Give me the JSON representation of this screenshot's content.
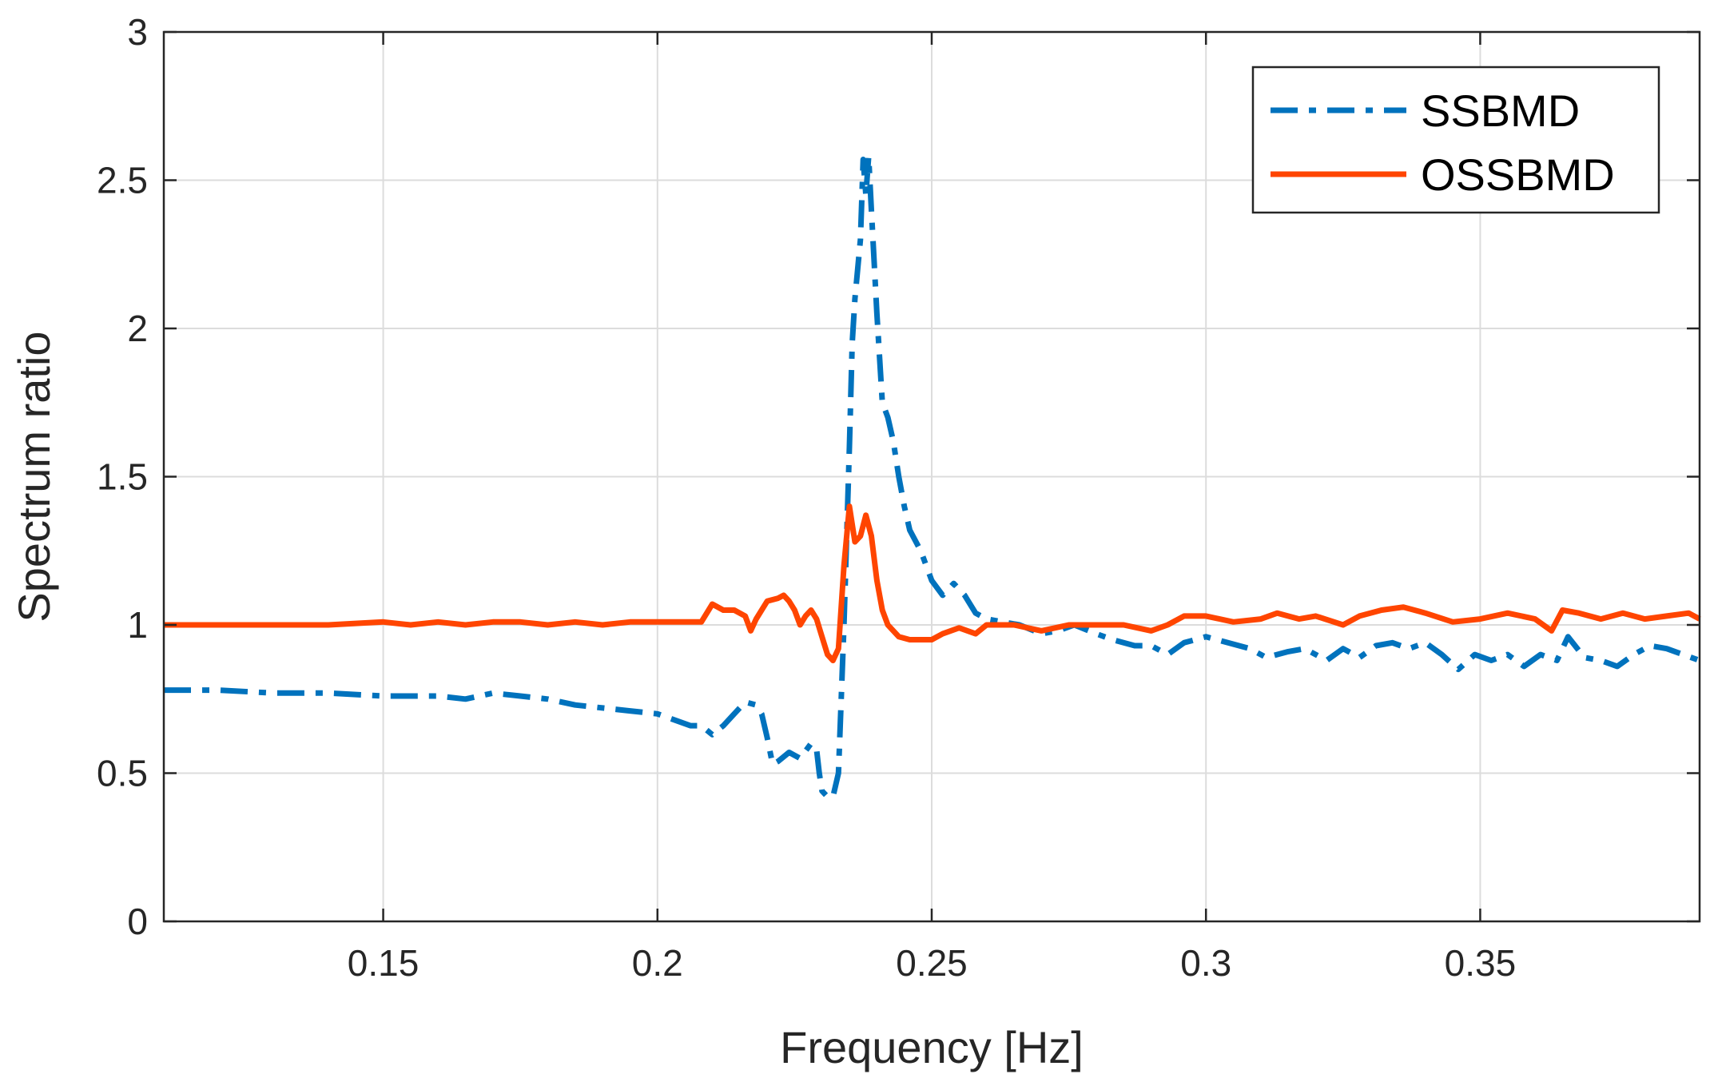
{
  "chart_data": {
    "type": "line",
    "title": "",
    "xlabel": "Frequency [Hz]",
    "ylabel": "Spectrum ratio",
    "xlim": [
      0.11,
      0.39
    ],
    "ylim": [
      0,
      3
    ],
    "grid": true,
    "legend_position": "top-right",
    "x_ticks": [
      0.15,
      0.2,
      0.25,
      0.3,
      0.35
    ],
    "x_tick_labels": [
      "0.15",
      "0.2",
      "0.25",
      "0.3",
      "0.35"
    ],
    "y_ticks": [
      0,
      0.5,
      1,
      1.5,
      2,
      2.5,
      3
    ],
    "y_tick_labels": [
      "0",
      "0.5",
      "1",
      "1.5",
      "2",
      "2.5",
      "3"
    ],
    "series": [
      {
        "name": "SSBMD",
        "color": "#0072BD",
        "style": "dashdot",
        "points": [
          [
            0.11,
            0.78
          ],
          [
            0.12,
            0.78
          ],
          [
            0.13,
            0.77
          ],
          [
            0.14,
            0.77
          ],
          [
            0.15,
            0.76
          ],
          [
            0.16,
            0.76
          ],
          [
            0.165,
            0.75
          ],
          [
            0.17,
            0.77
          ],
          [
            0.175,
            0.76
          ],
          [
            0.18,
            0.75
          ],
          [
            0.185,
            0.73
          ],
          [
            0.19,
            0.72
          ],
          [
            0.195,
            0.71
          ],
          [
            0.2,
            0.7
          ],
          [
            0.203,
            0.68
          ],
          [
            0.206,
            0.66
          ],
          [
            0.208,
            0.66
          ],
          [
            0.21,
            0.63
          ],
          [
            0.212,
            0.66
          ],
          [
            0.214,
            0.7
          ],
          [
            0.216,
            0.74
          ],
          [
            0.218,
            0.73
          ],
          [
            0.219,
            0.7
          ],
          [
            0.22,
            0.62
          ],
          [
            0.221,
            0.53
          ],
          [
            0.222,
            0.54
          ],
          [
            0.224,
            0.57
          ],
          [
            0.226,
            0.55
          ],
          [
            0.228,
            0.6
          ],
          [
            0.229,
            0.58
          ],
          [
            0.2295,
            0.5
          ],
          [
            0.23,
            0.44
          ],
          [
            0.231,
            0.42
          ],
          [
            0.232,
            0.42
          ],
          [
            0.233,
            0.5
          ],
          [
            0.234,
            1.0
          ],
          [
            0.235,
            1.6
          ],
          [
            0.2355,
            1.95
          ],
          [
            0.236,
            2.1
          ],
          [
            0.237,
            2.3
          ],
          [
            0.2375,
            2.57
          ],
          [
            0.238,
            2.45
          ],
          [
            0.2385,
            2.58
          ],
          [
            0.239,
            2.4
          ],
          [
            0.24,
            2.05
          ],
          [
            0.241,
            1.75
          ],
          [
            0.242,
            1.7
          ],
          [
            0.243,
            1.62
          ],
          [
            0.244,
            1.5
          ],
          [
            0.245,
            1.4
          ],
          [
            0.246,
            1.32
          ],
          [
            0.248,
            1.25
          ],
          [
            0.25,
            1.15
          ],
          [
            0.252,
            1.1
          ],
          [
            0.254,
            1.14
          ],
          [
            0.256,
            1.1
          ],
          [
            0.258,
            1.04
          ],
          [
            0.26,
            1.02
          ],
          [
            0.263,
            1.01
          ],
          [
            0.266,
            1.0
          ],
          [
            0.27,
            0.97
          ],
          [
            0.273,
            0.98
          ],
          [
            0.276,
            1.0
          ],
          [
            0.28,
            0.97
          ],
          [
            0.283,
            0.95
          ],
          [
            0.287,
            0.93
          ],
          [
            0.29,
            0.93
          ],
          [
            0.293,
            0.9
          ],
          [
            0.296,
            0.94
          ],
          [
            0.3,
            0.96
          ],
          [
            0.304,
            0.94
          ],
          [
            0.308,
            0.92
          ],
          [
            0.311,
            0.89
          ],
          [
            0.315,
            0.91
          ],
          [
            0.318,
            0.92
          ],
          [
            0.322,
            0.88
          ],
          [
            0.325,
            0.92
          ],
          [
            0.328,
            0.89
          ],
          [
            0.331,
            0.93
          ],
          [
            0.334,
            0.94
          ],
          [
            0.337,
            0.92
          ],
          [
            0.34,
            0.94
          ],
          [
            0.343,
            0.9
          ],
          [
            0.346,
            0.85
          ],
          [
            0.349,
            0.9
          ],
          [
            0.352,
            0.88
          ],
          [
            0.355,
            0.9
          ],
          [
            0.358,
            0.86
          ],
          [
            0.361,
            0.9
          ],
          [
            0.364,
            0.88
          ],
          [
            0.366,
            0.96
          ],
          [
            0.369,
            0.89
          ],
          [
            0.372,
            0.88
          ],
          [
            0.375,
            0.86
          ],
          [
            0.378,
            0.9
          ],
          [
            0.381,
            0.93
          ],
          [
            0.384,
            0.92
          ],
          [
            0.387,
            0.9
          ],
          [
            0.39,
            0.88
          ]
        ]
      },
      {
        "name": "OSSBMD",
        "color": "#FF4500",
        "style": "solid",
        "points": [
          [
            0.11,
            1.0
          ],
          [
            0.12,
            1.0
          ],
          [
            0.13,
            1.0
          ],
          [
            0.14,
            1.0
          ],
          [
            0.15,
            1.01
          ],
          [
            0.155,
            1.0
          ],
          [
            0.16,
            1.01
          ],
          [
            0.165,
            1.0
          ],
          [
            0.17,
            1.01
          ],
          [
            0.175,
            1.01
          ],
          [
            0.18,
            1.0
          ],
          [
            0.185,
            1.01
          ],
          [
            0.19,
            1.0
          ],
          [
            0.195,
            1.01
          ],
          [
            0.2,
            1.01
          ],
          [
            0.205,
            1.01
          ],
          [
            0.208,
            1.01
          ],
          [
            0.21,
            1.07
          ],
          [
            0.212,
            1.05
          ],
          [
            0.214,
            1.05
          ],
          [
            0.216,
            1.03
          ],
          [
            0.217,
            0.98
          ],
          [
            0.218,
            1.02
          ],
          [
            0.22,
            1.08
          ],
          [
            0.222,
            1.09
          ],
          [
            0.223,
            1.1
          ],
          [
            0.224,
            1.08
          ],
          [
            0.225,
            1.05
          ],
          [
            0.226,
            1.0
          ],
          [
            0.227,
            1.03
          ],
          [
            0.228,
            1.05
          ],
          [
            0.229,
            1.02
          ],
          [
            0.23,
            0.96
          ],
          [
            0.231,
            0.9
          ],
          [
            0.232,
            0.88
          ],
          [
            0.233,
            0.92
          ],
          [
            0.234,
            1.2
          ],
          [
            0.235,
            1.4
          ],
          [
            0.236,
            1.28
          ],
          [
            0.237,
            1.3
          ],
          [
            0.238,
            1.37
          ],
          [
            0.239,
            1.3
          ],
          [
            0.24,
            1.15
          ],
          [
            0.241,
            1.05
          ],
          [
            0.242,
            1.0
          ],
          [
            0.244,
            0.96
          ],
          [
            0.246,
            0.95
          ],
          [
            0.248,
            0.95
          ],
          [
            0.25,
            0.95
          ],
          [
            0.252,
            0.97
          ],
          [
            0.255,
            0.99
          ],
          [
            0.258,
            0.97
          ],
          [
            0.26,
            1.0
          ],
          [
            0.265,
            1.0
          ],
          [
            0.27,
            0.98
          ],
          [
            0.275,
            1.0
          ],
          [
            0.28,
            1.0
          ],
          [
            0.285,
            1.0
          ],
          [
            0.29,
            0.98
          ],
          [
            0.293,
            1.0
          ],
          [
            0.296,
            1.03
          ],
          [
            0.3,
            1.03
          ],
          [
            0.305,
            1.01
          ],
          [
            0.31,
            1.02
          ],
          [
            0.313,
            1.04
          ],
          [
            0.317,
            1.02
          ],
          [
            0.32,
            1.03
          ],
          [
            0.325,
            1.0
          ],
          [
            0.328,
            1.03
          ],
          [
            0.332,
            1.05
          ],
          [
            0.336,
            1.06
          ],
          [
            0.34,
            1.04
          ],
          [
            0.345,
            1.01
          ],
          [
            0.35,
            1.02
          ],
          [
            0.355,
            1.04
          ],
          [
            0.36,
            1.02
          ],
          [
            0.363,
            0.98
          ],
          [
            0.365,
            1.05
          ],
          [
            0.368,
            1.04
          ],
          [
            0.372,
            1.02
          ],
          [
            0.376,
            1.04
          ],
          [
            0.38,
            1.02
          ],
          [
            0.384,
            1.03
          ],
          [
            0.388,
            1.04
          ],
          [
            0.39,
            1.02
          ]
        ]
      }
    ]
  }
}
